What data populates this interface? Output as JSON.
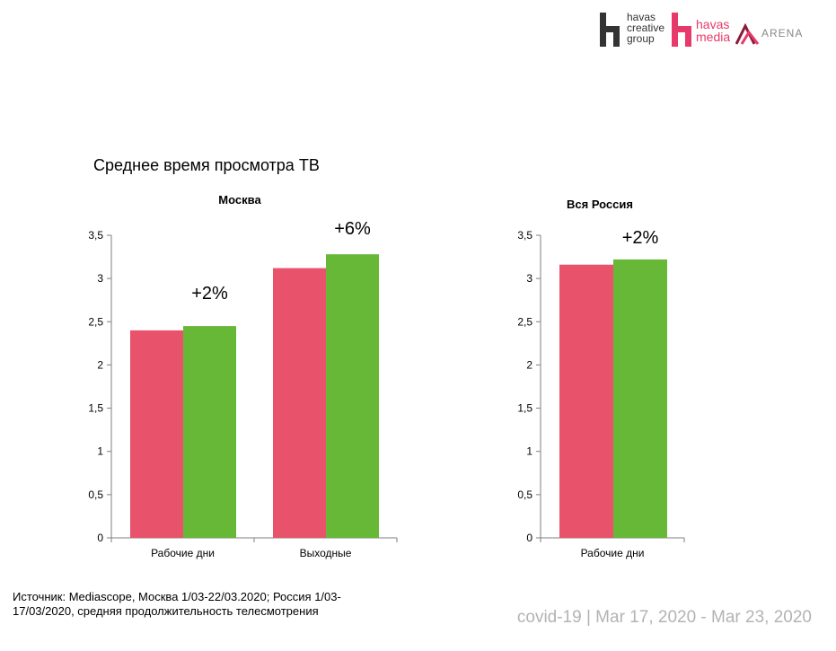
{
  "logos": {
    "havas_creative_group": "havas\ncreative\ngroup",
    "havas_media": "havas\nmedia",
    "arena": "ARENA"
  },
  "title": "Среднее время просмотра ТВ",
  "source": "Источник: Mediascope, Москва 1/03-22/03.2020; Россия 1/03-17/03/2020, средняя продолжительность телесмотрения",
  "footer": "covid-19 | Mar 17, 2020 - Mar 23, 2020",
  "colors": {
    "series_1": "#e8526b",
    "series_2": "#67b837",
    "axis": "#7f7f7f",
    "logo_dark": "#333333",
    "logo_pink": "#e73a6a"
  },
  "chart_data": [
    {
      "type": "bar",
      "title": "Москва",
      "categories": [
        "Рабочие дни",
        "Выходные"
      ],
      "series": [
        {
          "values": [
            2.4,
            3.12
          ]
        },
        {
          "values": [
            2.45,
            3.28
          ]
        }
      ],
      "yticks": [
        "0",
        "0,5",
        "1",
        "1,5",
        "2",
        "2,5",
        "3",
        "3,5"
      ],
      "ylim": [
        0,
        3.5
      ],
      "annotations": [
        "+2%",
        "+6%"
      ],
      "grid": false,
      "legend": "none"
    },
    {
      "type": "bar",
      "title": "Вся Россия",
      "categories": [
        "Рабочие дни"
      ],
      "series": [
        {
          "values": [
            3.16
          ]
        },
        {
          "values": [
            3.22
          ]
        }
      ],
      "yticks": [
        "0",
        "0,5",
        "1",
        "1,5",
        "2",
        "2,5",
        "3",
        "3,5"
      ],
      "ylim": [
        0,
        3.5
      ],
      "annotations": [
        "+2%"
      ],
      "grid": false,
      "legend": "none"
    }
  ]
}
